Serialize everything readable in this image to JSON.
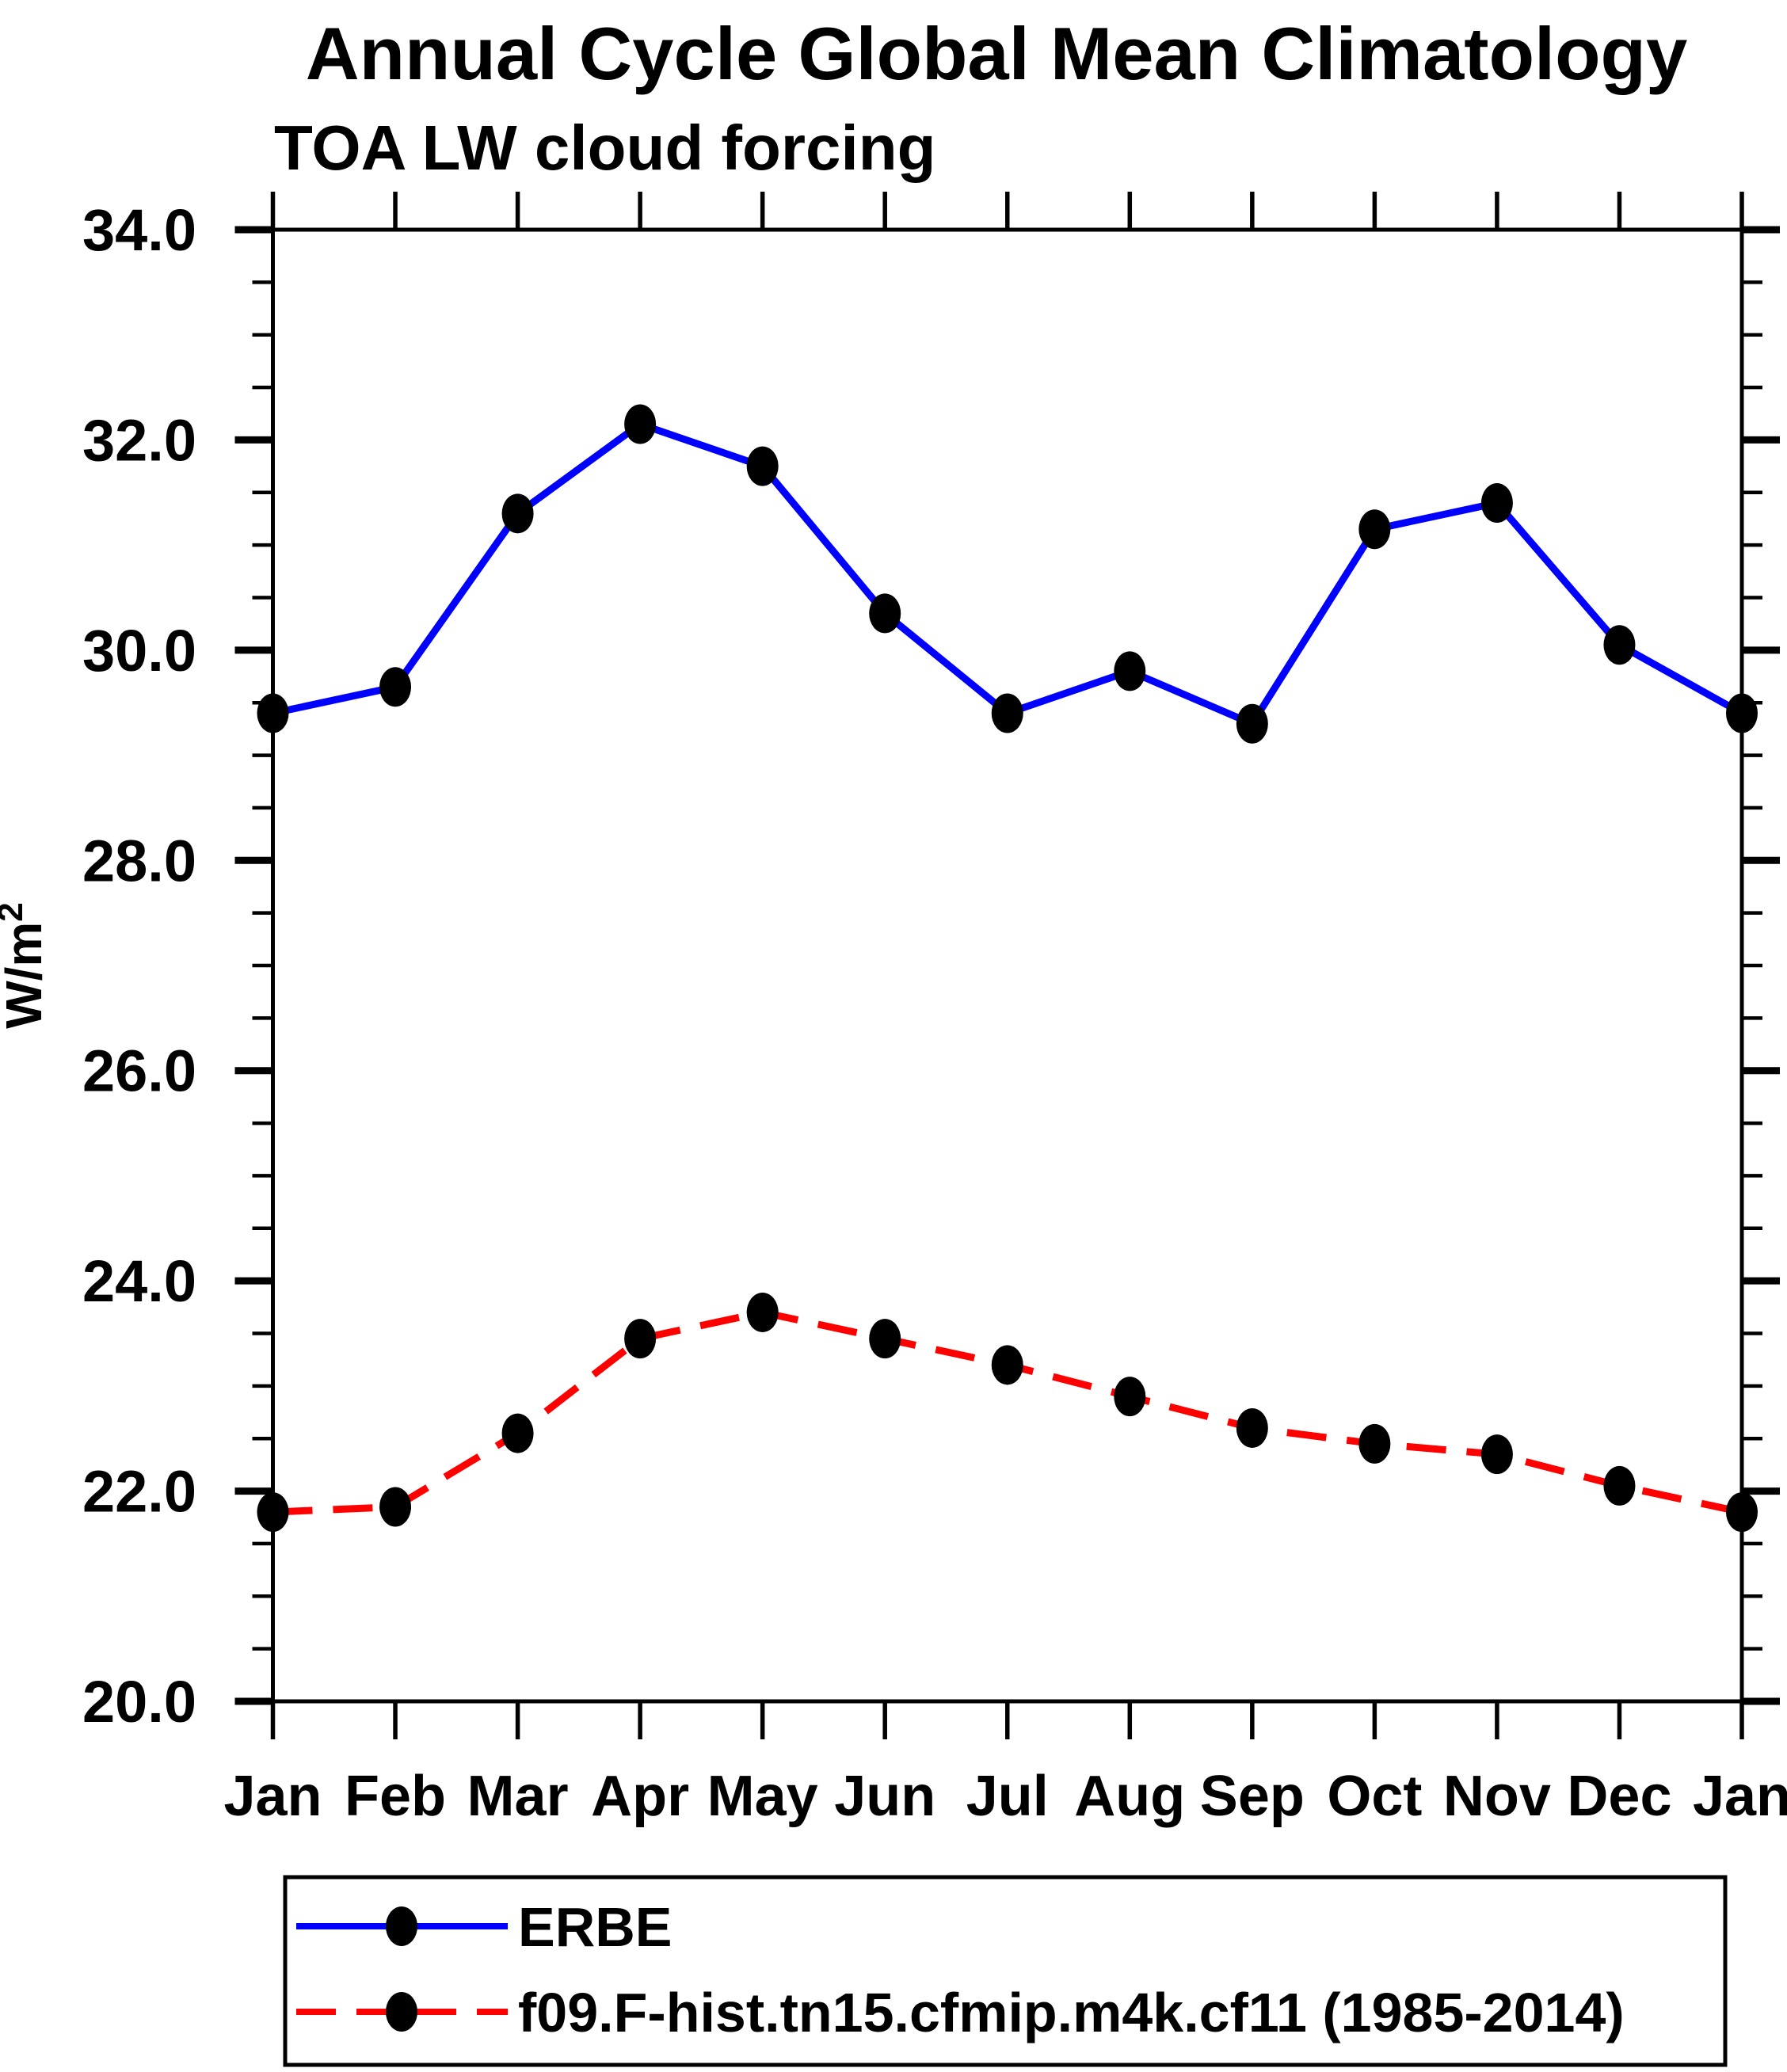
{
  "chart_data": {
    "type": "line",
    "title": "Annual Cycle Global Mean Climatology",
    "subtitle": "TOA LW cloud forcing",
    "ylabel": "W/m²",
    "xlabel": "",
    "ylim": [
      20.0,
      34.0
    ],
    "ytick_major_step": 2.0,
    "ytick_minor_step": 0.5,
    "ytick_labels": [
      "20.0",
      "22.0",
      "24.0",
      "26.0",
      "28.0",
      "30.0",
      "32.0",
      "34.0"
    ],
    "categories": [
      "Jan",
      "Feb",
      "Mar",
      "Apr",
      "May",
      "Jun",
      "Jul",
      "Aug",
      "Sep",
      "Oct",
      "Nov",
      "Dec",
      "Jan"
    ],
    "grid": false,
    "legend_position": "bottom",
    "series": [
      {
        "name": "ERBE",
        "color": "#0000ff",
        "line_style": "solid",
        "marker": "filled-ellipse",
        "marker_color": "#000000",
        "values": [
          29.4,
          29.65,
          31.3,
          32.15,
          31.75,
          30.35,
          29.4,
          29.8,
          29.3,
          31.15,
          31.4,
          30.05,
          29.4
        ]
      },
      {
        "name": "f09.F-hist.tn15.cfmip.m4k.cf11 (1985-2014)",
        "color": "#ff0000",
        "line_style": "dashed",
        "marker": "filled-ellipse",
        "marker_color": "#000000",
        "values": [
          21.8,
          21.85,
          22.55,
          23.45,
          23.7,
          23.45,
          23.2,
          22.9,
          22.6,
          22.45,
          22.35,
          22.05,
          21.8
        ]
      }
    ],
    "axis_color": "#000000",
    "background_color": "#ffffff"
  }
}
